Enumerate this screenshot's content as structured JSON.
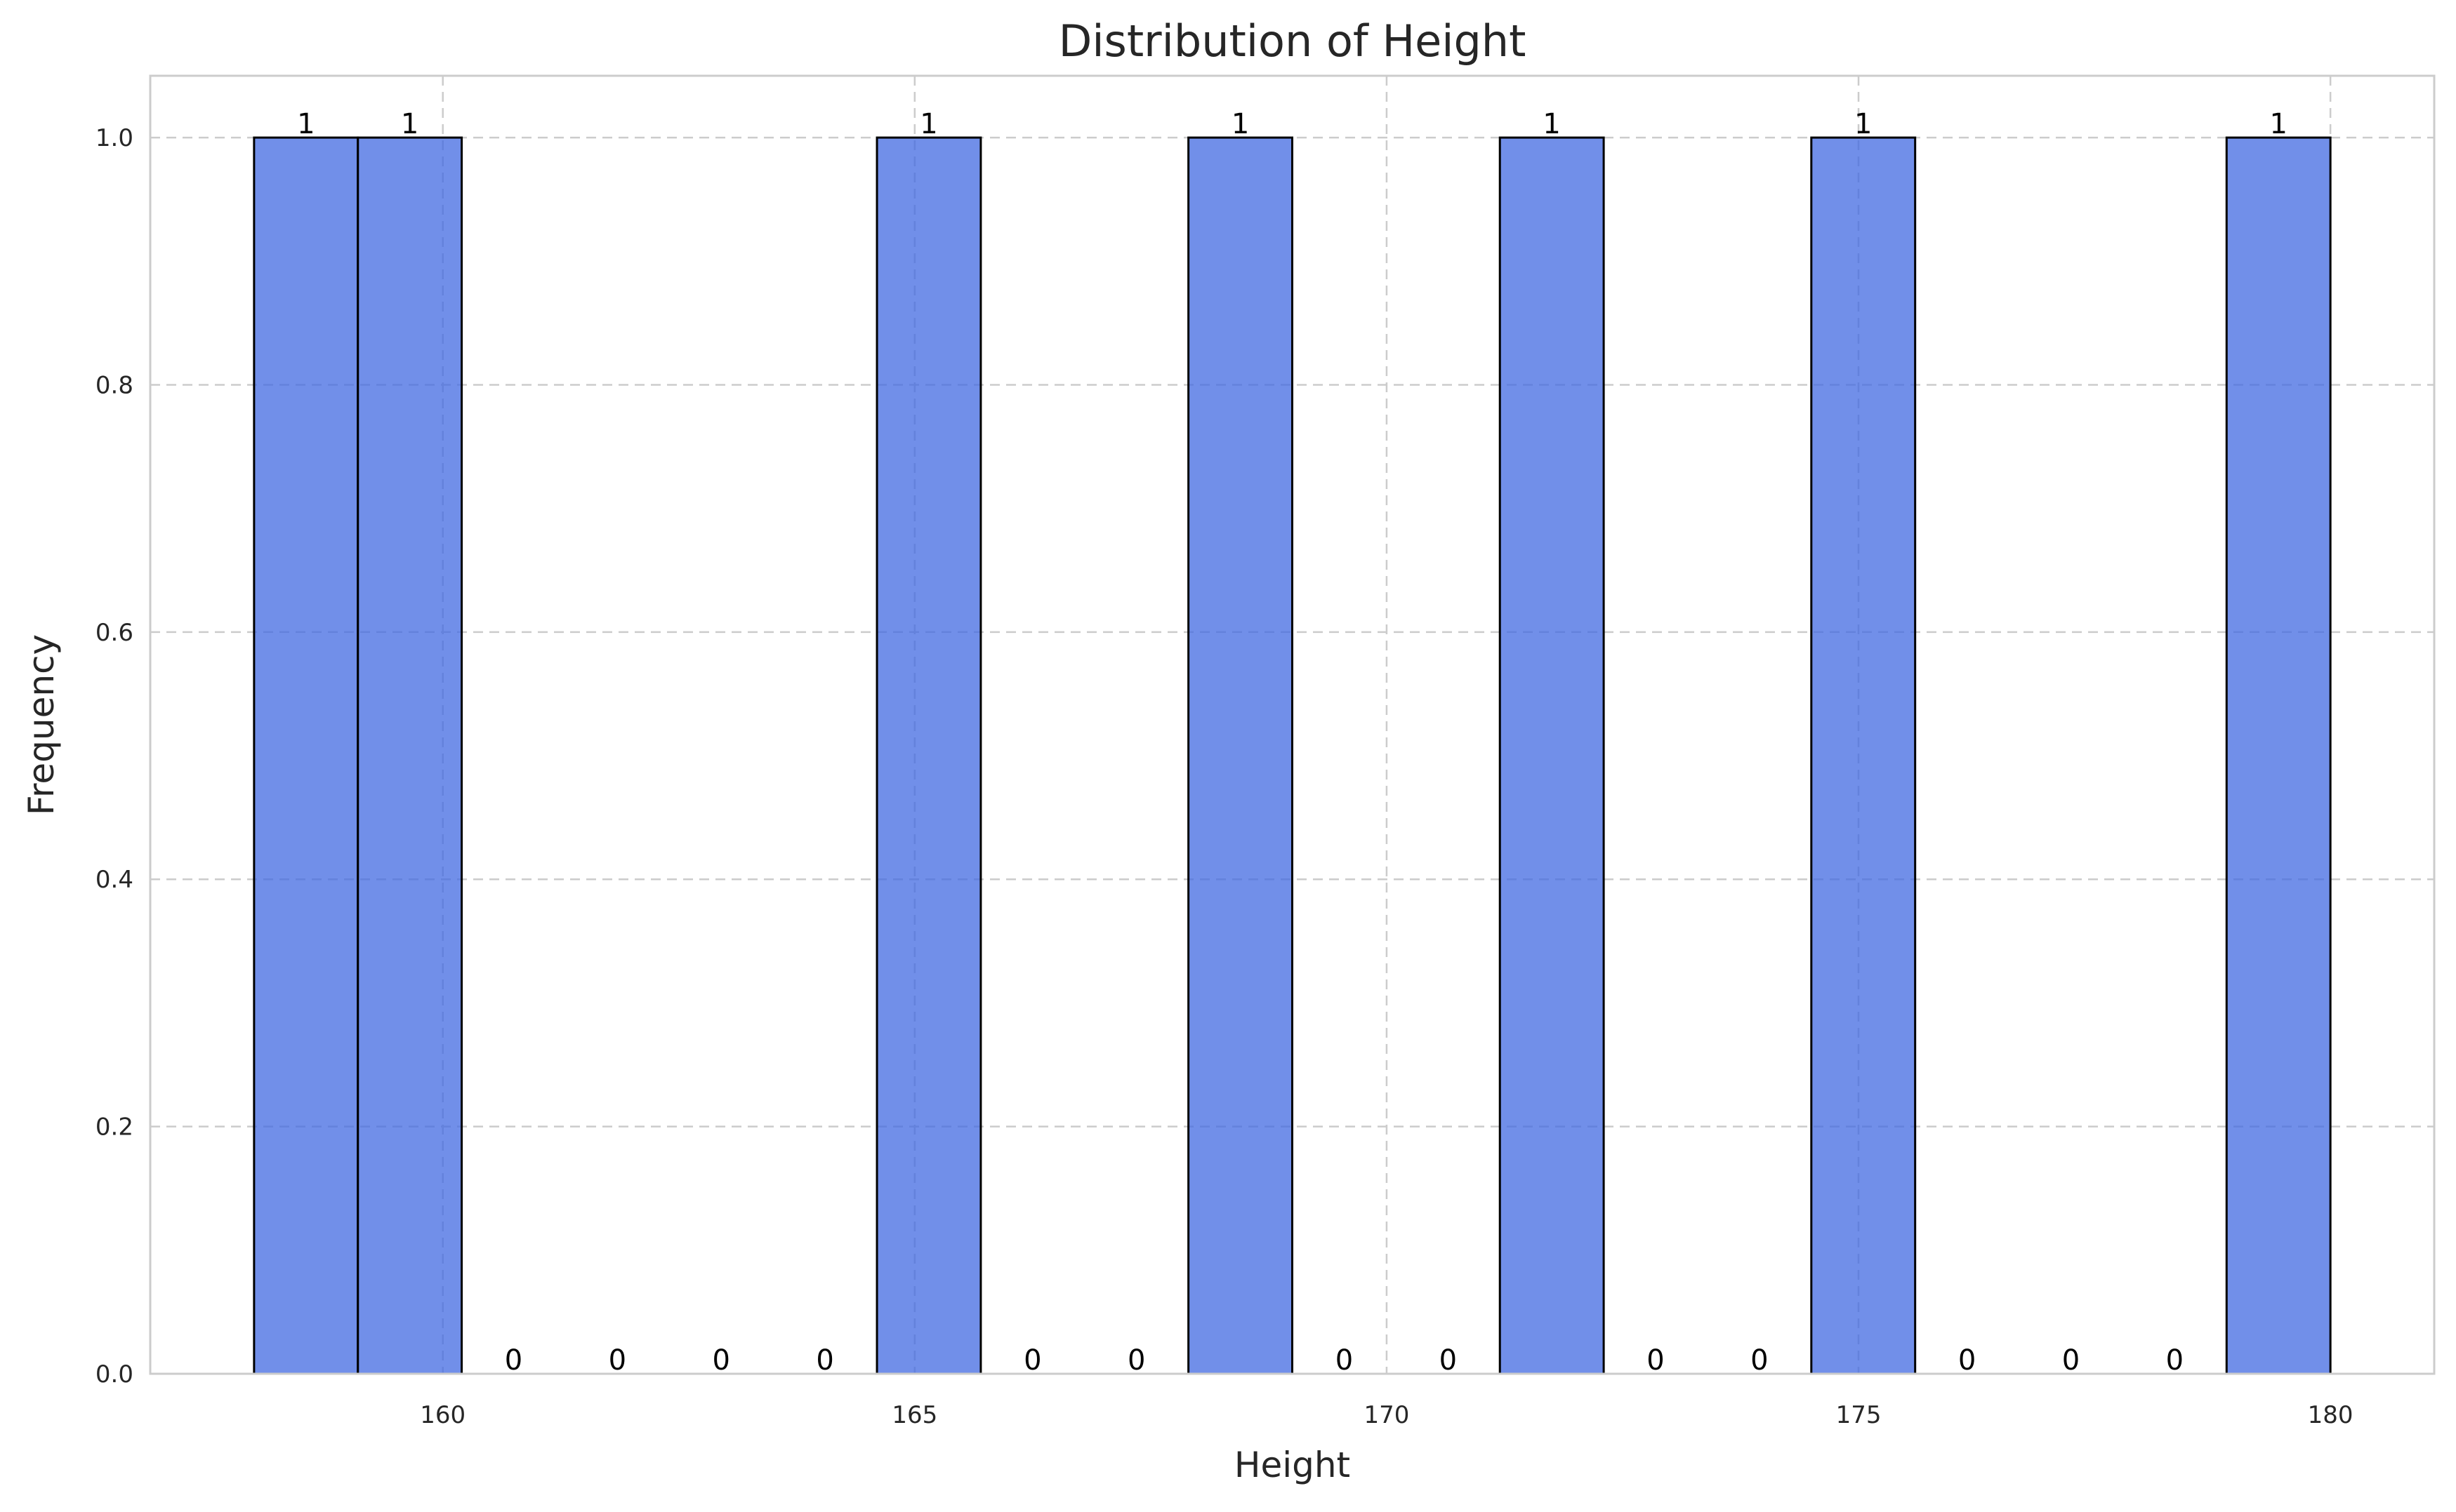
{
  "chart_data": {
    "type": "bar",
    "title": "Distribution of Height",
    "xlabel": "Height",
    "ylabel": "Frequency",
    "bins": [
      {
        "start": 158.0,
        "end": 159.1,
        "value": 1
      },
      {
        "start": 159.1,
        "end": 160.2,
        "value": 1
      },
      {
        "start": 160.2,
        "end": 161.3,
        "value": 0
      },
      {
        "start": 161.3,
        "end": 162.4,
        "value": 0
      },
      {
        "start": 162.4,
        "end": 163.5,
        "value": 0
      },
      {
        "start": 163.5,
        "end": 164.6,
        "value": 0
      },
      {
        "start": 164.6,
        "end": 165.7,
        "value": 1
      },
      {
        "start": 165.7,
        "end": 166.8,
        "value": 0
      },
      {
        "start": 166.8,
        "end": 167.9,
        "value": 0
      },
      {
        "start": 167.9,
        "end": 169.0,
        "value": 1
      },
      {
        "start": 169.0,
        "end": 170.1,
        "value": 0
      },
      {
        "start": 170.1,
        "end": 171.2,
        "value": 0
      },
      {
        "start": 171.2,
        "end": 172.3,
        "value": 1
      },
      {
        "start": 172.3,
        "end": 173.4,
        "value": 0
      },
      {
        "start": 173.4,
        "end": 174.5,
        "value": 0
      },
      {
        "start": 174.5,
        "end": 175.6,
        "value": 1
      },
      {
        "start": 175.6,
        "end": 176.7,
        "value": 0
      },
      {
        "start": 176.7,
        "end": 177.8,
        "value": 0
      },
      {
        "start": 177.8,
        "end": 178.9,
        "value": 0
      },
      {
        "start": 178.9,
        "end": 180.0,
        "value": 1
      }
    ],
    "xlim": [
      156.9,
      181.1
    ],
    "ylim": [
      0,
      1.05
    ],
    "xticks": [
      160,
      165,
      170,
      175,
      180
    ],
    "yticks": [
      0.0,
      0.2,
      0.4,
      0.6,
      0.8,
      1.0
    ],
    "xtick_labels": [
      "160",
      "165",
      "170",
      "175",
      "180"
    ],
    "ytick_labels": [
      "0.0",
      "0.2",
      "0.4",
      "0.6",
      "0.8",
      "1.0"
    ],
    "grid": true,
    "colors": {
      "bar_fill": "#4169e1",
      "bar_edge": "#000000",
      "grid": "#cccccc",
      "spine": "#cccccc"
    }
  }
}
